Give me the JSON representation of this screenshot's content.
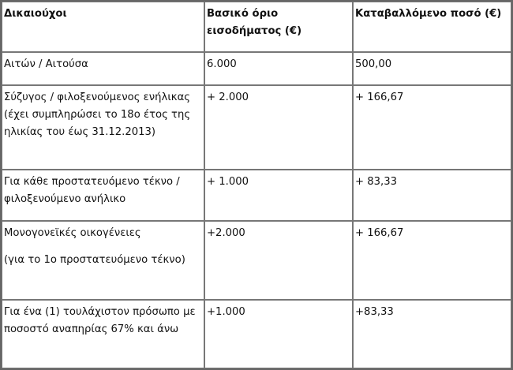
{
  "table": {
    "headers": [
      "Δικαιούχοι",
      "Βασικό όριο εισοδήματος (€)",
      "Καταβαλλόμενο ποσό (€)"
    ],
    "rows": [
      {
        "beneficiary": [
          "Αιτών / Αιτούσα"
        ],
        "income_limit": "6.000",
        "amount": "500,00"
      },
      {
        "beneficiary": [
          "Σύζυγος / φιλοξενούμενος ενήλικας (έχει συμπληρώσει το 18ο έτος της ηλικίας του έως 31.12.2013)"
        ],
        "income_limit": "+ 2.000",
        "amount": "+ 166,67"
      },
      {
        "beneficiary": [
          "Για κάθε προστατευόμενο τέκνο / φιλοξενούμενο ανήλικο"
        ],
        "income_limit": "+ 1.000",
        "amount": "+ 83,33"
      },
      {
        "beneficiary": [
          "Μονογονεϊκές οικογένειες",
          "(για το 1ο προστατευόμενο τέκνο)"
        ],
        "income_limit": "+2.000",
        "amount": "+ 166,67"
      },
      {
        "beneficiary": [
          "Για ένα (1) τουλάχιστον πρόσωπο με ποσοστό αναπηρίας 67% και άνω"
        ],
        "income_limit": "+1.000",
        "amount": "+83,33"
      }
    ]
  }
}
